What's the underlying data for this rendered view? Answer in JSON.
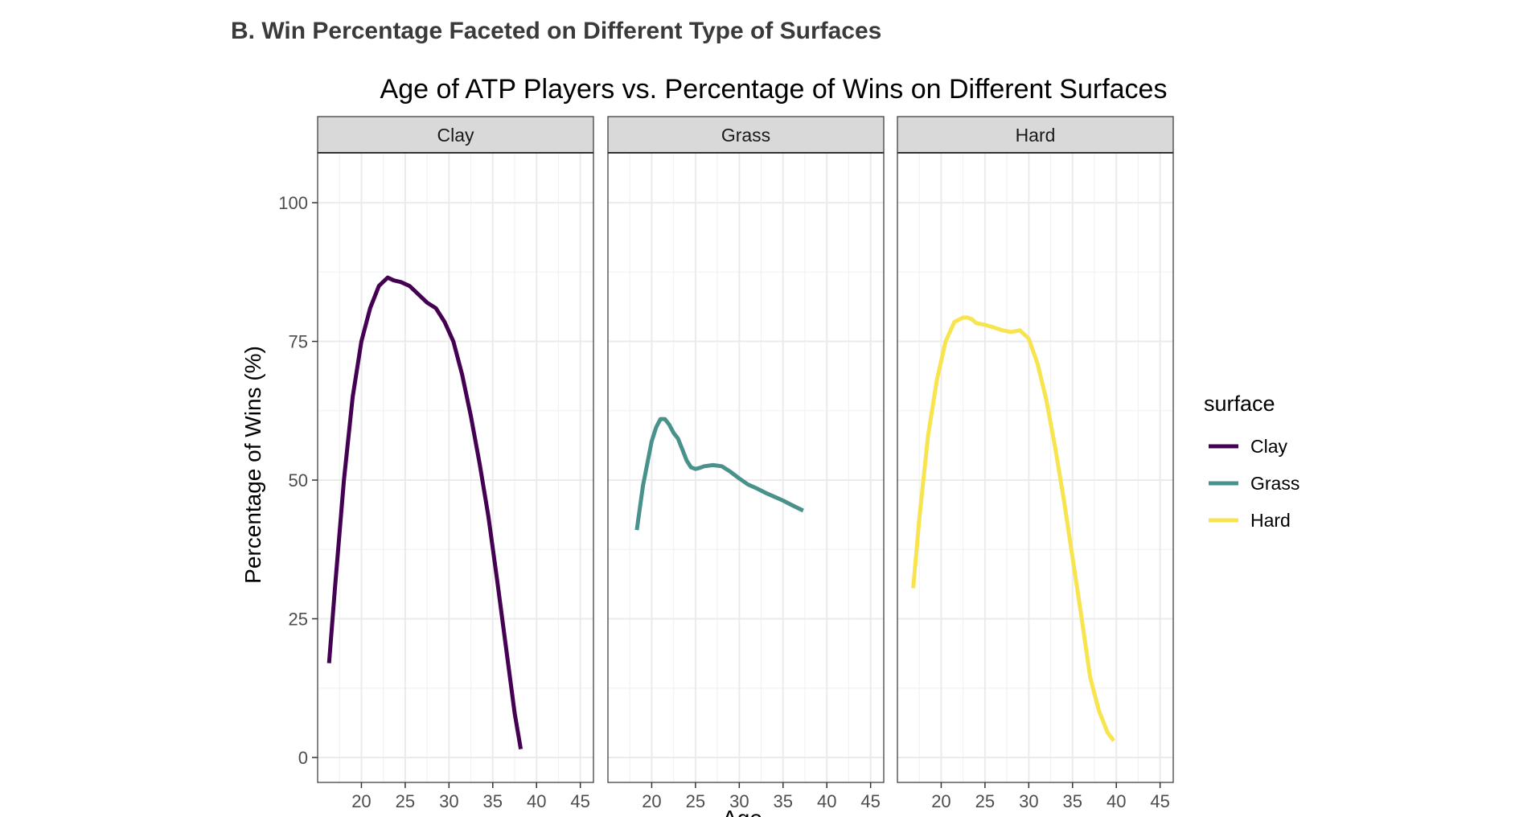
{
  "section_heading": "B. Win Percentage Faceted on Different Type of Surfaces",
  "chart_data": {
    "type": "line",
    "title": "Age of ATP Players vs. Percentage of Wins on Different Surfaces",
    "xlabel": "Age",
    "ylabel": "Percentage of Wins (%)",
    "xlim": [
      15,
      46.5
    ],
    "ylim": [
      -4.5,
      109
    ],
    "x_ticks": [
      "20",
      "25",
      "30",
      "35",
      "40",
      "45"
    ],
    "y_ticks": [
      "0",
      "25",
      "50",
      "75",
      "100"
    ],
    "grid": true,
    "facets": [
      "Clay",
      "Grass",
      "Hard"
    ],
    "legend": {
      "title": "surface",
      "position": "right",
      "entries": [
        "Clay",
        "Grass",
        "Hard"
      ]
    },
    "colors": {
      "Clay": "#440154",
      "Grass": "#48928b",
      "Hard": "#f7e44f"
    },
    "series": [
      {
        "name": "Clay",
        "x": [
          16.3,
          17.0,
          18.0,
          19.0,
          20.0,
          21.0,
          22.0,
          23.0,
          23.7,
          24.5,
          25.5,
          26.5,
          27.5,
          28.5,
          29.5,
          30.5,
          31.5,
          32.5,
          33.5,
          34.5,
          35.5,
          36.5,
          37.5,
          38.2
        ],
        "y": [
          17,
          31,
          50,
          65,
          75,
          81,
          85,
          86.5,
          86,
          85.7,
          85,
          83.5,
          82,
          81,
          78.5,
          75,
          69,
          61.5,
          53,
          43.5,
          32,
          20,
          8,
          1.5
        ]
      },
      {
        "name": "Grass",
        "x": [
          18.3,
          19.0,
          19.5,
          20.0,
          20.5,
          21.0,
          21.5,
          22.0,
          22.5,
          23.0,
          23.5,
          24.0,
          24.5,
          25.0,
          25.5,
          26.0,
          27.0,
          28.0,
          29.0,
          30.0,
          31.0,
          32.0,
          33.0,
          34.0,
          35.0,
          36.0,
          37.3
        ],
        "y": [
          41,
          49,
          53,
          57,
          59.5,
          61,
          61,
          60,
          58.5,
          57.5,
          55.5,
          53.5,
          52.3,
          52,
          52.2,
          52.5,
          52.7,
          52.5,
          51.5,
          50.3,
          49.2,
          48.5,
          47.7,
          47,
          46.3,
          45.5,
          44.5
        ]
      },
      {
        "name": "Hard",
        "x": [
          16.8,
          17.5,
          18.5,
          19.5,
          20.5,
          21.5,
          22.5,
          23.0,
          23.5,
          24.0,
          25.0,
          26.0,
          27.0,
          28.0,
          29.0,
          30.0,
          31.0,
          32.0,
          33.0,
          34.0,
          35.0,
          36.0,
          37.0,
          38.0,
          39.0,
          39.7
        ],
        "y": [
          30.5,
          43,
          58,
          68,
          75,
          78.5,
          79.3,
          79.3,
          79,
          78.3,
          78,
          77.5,
          77,
          76.7,
          77,
          75.5,
          71,
          64.5,
          56,
          46.5,
          36,
          25.5,
          14.5,
          8.5,
          4.5,
          3
        ]
      }
    ]
  }
}
